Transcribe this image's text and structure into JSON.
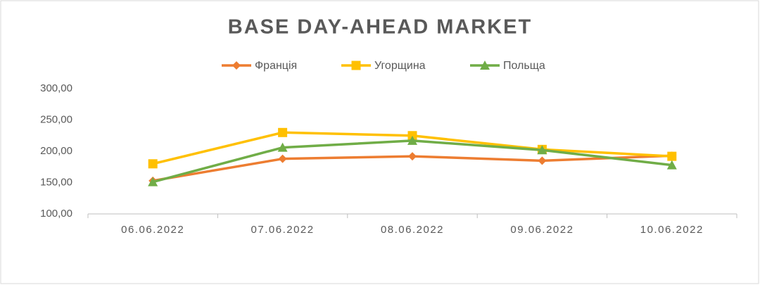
{
  "chart_data": {
    "type": "line",
    "title": "BASE DAY-AHEAD MARKET",
    "categories": [
      "06.06.2022",
      "07.06.2022",
      "08.06.2022",
      "09.06.2022",
      "10.06.2022"
    ],
    "series": [
      {
        "name": "Франція",
        "color": "#ED7D31",
        "marker": "diamond",
        "values": [
          153,
          188,
          192,
          185,
          193
        ]
      },
      {
        "name": "Угорщина",
        "color": "#FFC000",
        "marker": "square",
        "values": [
          180,
          230,
          225,
          203,
          192
        ]
      },
      {
        "name": "Польща",
        "color": "#70AD47",
        "marker": "triangle",
        "values": [
          151,
          206,
          217,
          202,
          178
        ]
      }
    ],
    "ylim": [
      100,
      300
    ],
    "yticks": [
      {
        "value": 100,
        "label": "100,00"
      },
      {
        "value": 150,
        "label": "150,00"
      },
      {
        "value": 200,
        "label": "200,00"
      },
      {
        "value": 250,
        "label": "250,00"
      },
      {
        "value": 300,
        "label": "300,00"
      }
    ],
    "grid": false,
    "legend": "top"
  }
}
